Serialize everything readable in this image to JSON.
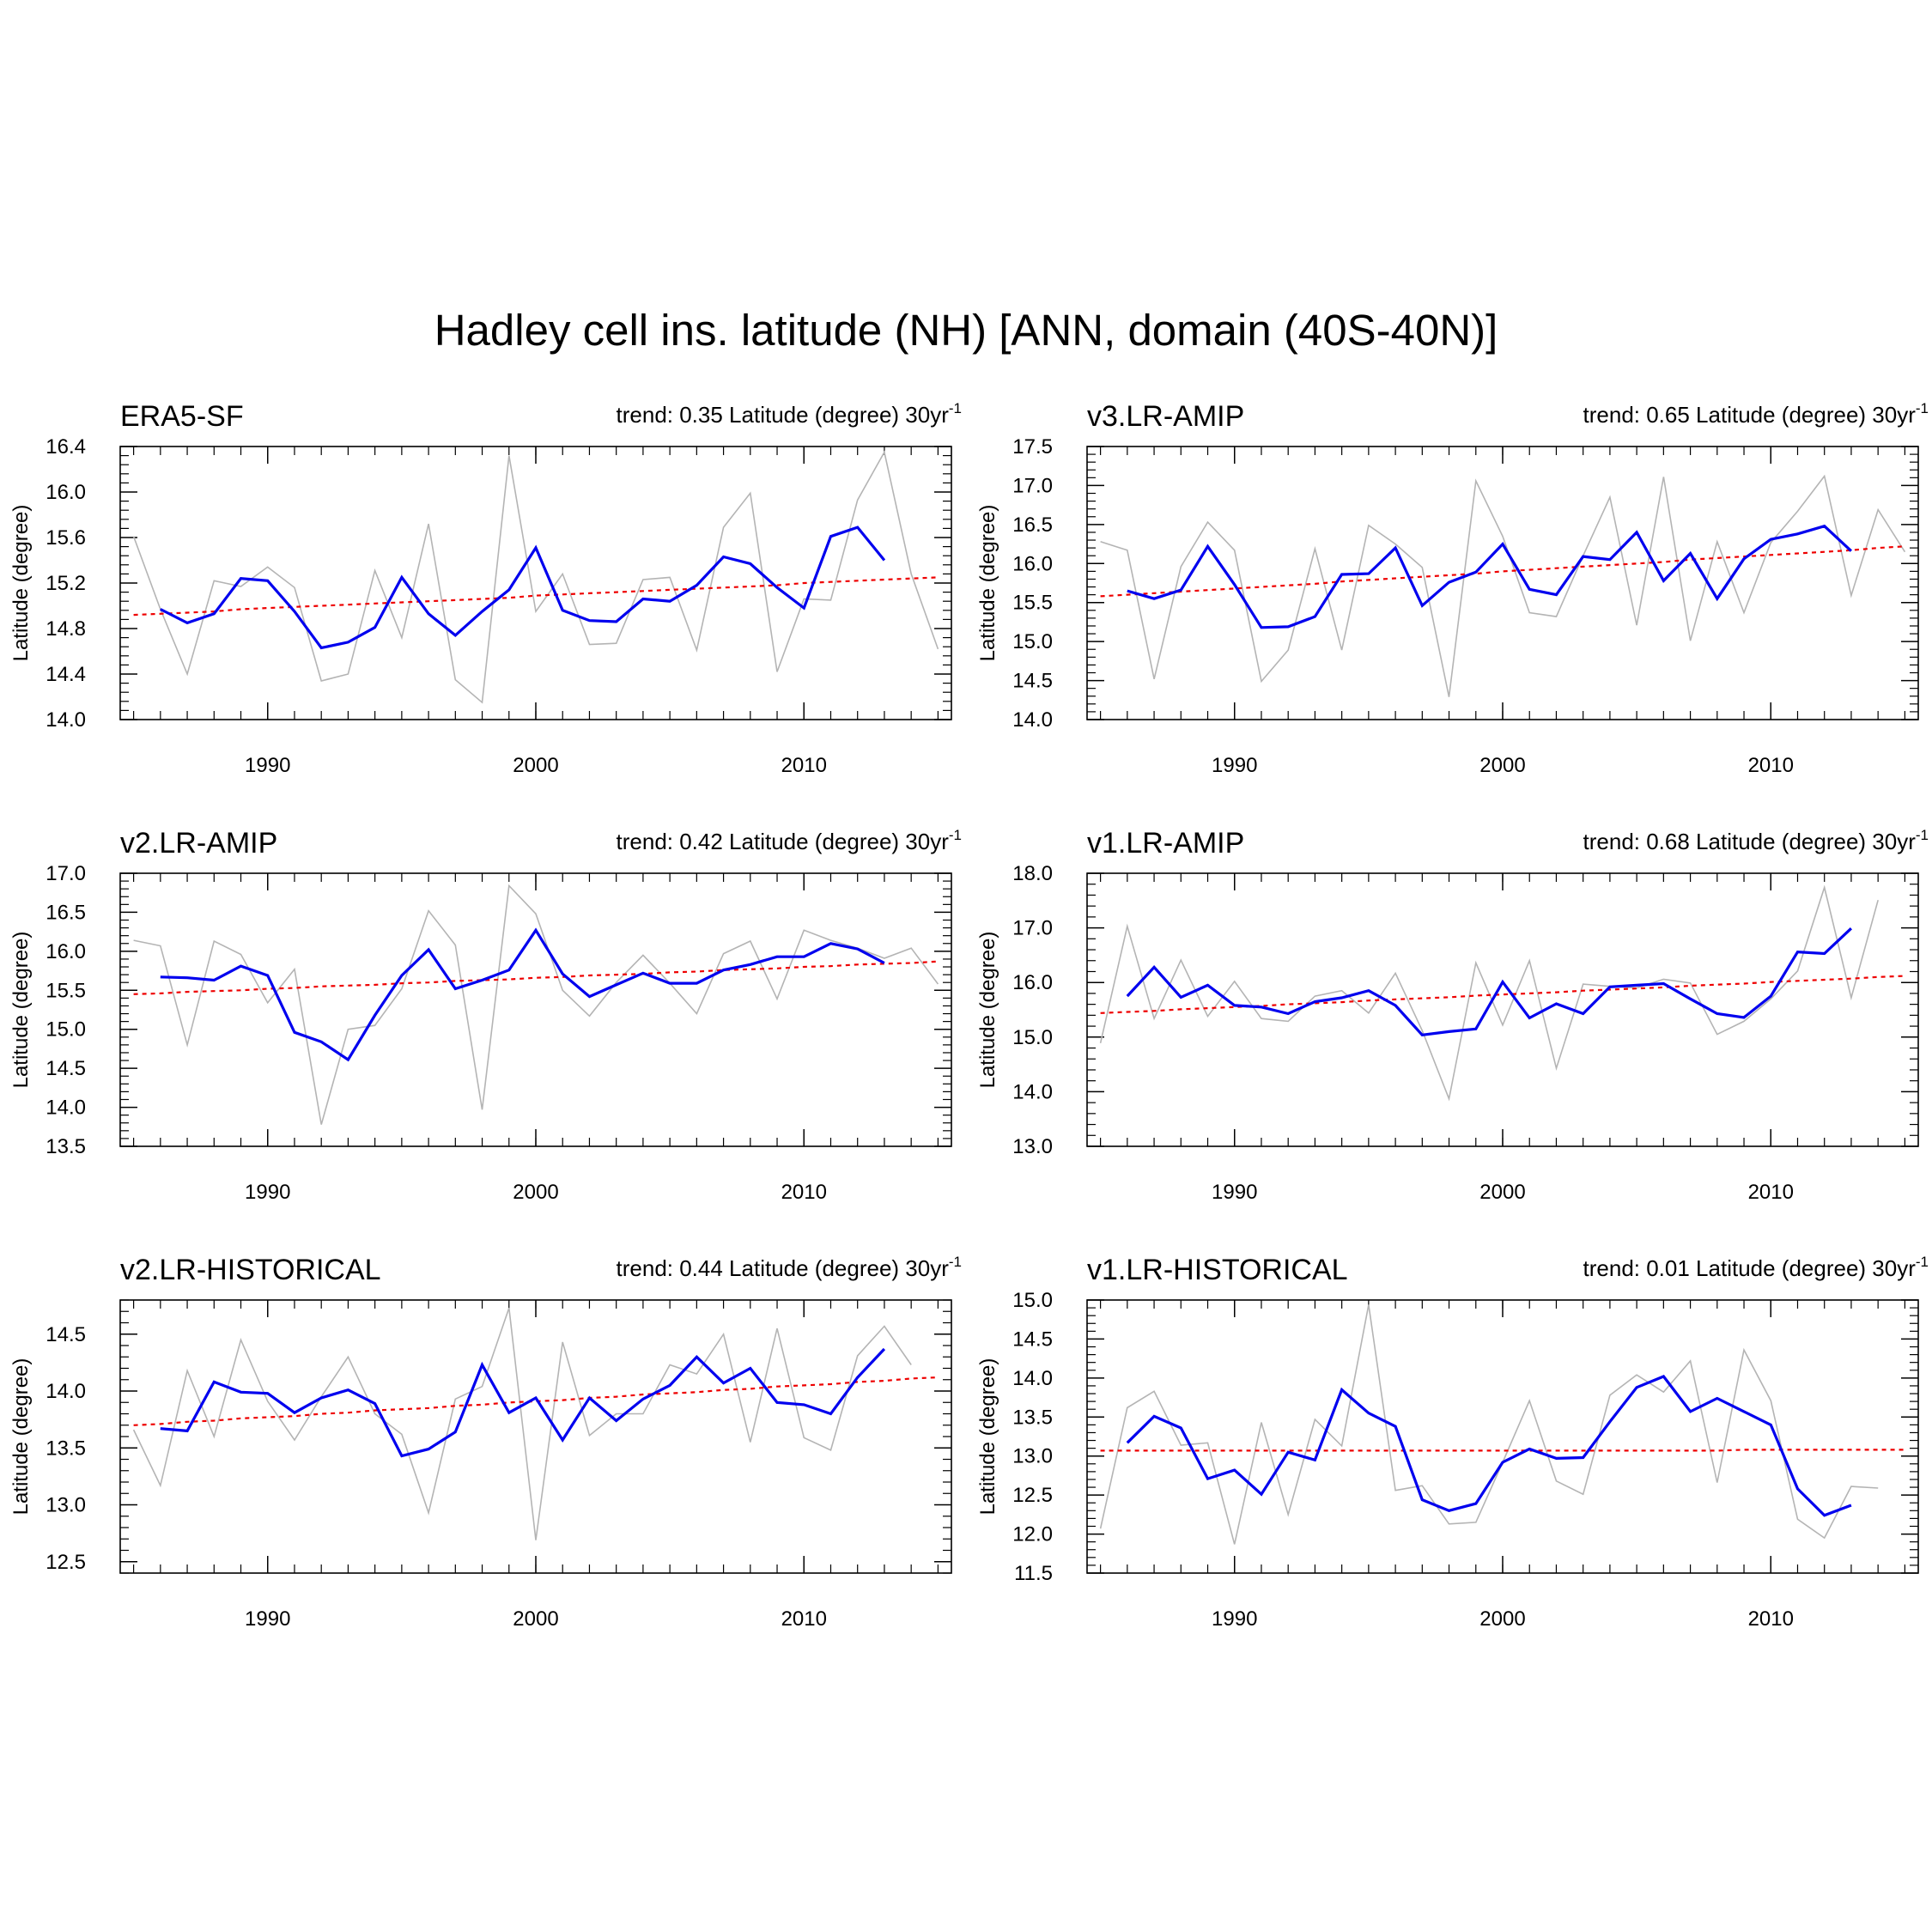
{
  "title": "Hadley cell ins. latitude (NH) [ANN, domain (40S-40N)]",
  "colors": {
    "smoothed": "#0000ee",
    "annual": "#b4b4b4",
    "trend": "#ee0000",
    "axis": "#000000"
  },
  "chart_data": [
    {
      "type": "line",
      "name": "ERA5-SF",
      "trend_text": "trend: 0.35 Latitude (degree) 30yr",
      "trend_sup": "-1",
      "ylabel": "Latitude (degree)",
      "xlim": [
        1984.5,
        2015.5
      ],
      "ylim": [
        14.0,
        16.4
      ],
      "yticks": [
        "14.0",
        "14.4",
        "14.8",
        "15.2",
        "15.6",
        "16.0",
        "16.4"
      ],
      "xticks": [
        "1990",
        "2000",
        "2010"
      ],
      "x": [
        1985,
        1986,
        1987,
        1988,
        1989,
        1990,
        1991,
        1992,
        1993,
        1994,
        1995,
        1996,
        1997,
        1998,
        1999,
        2000,
        2001,
        2002,
        2003,
        2004,
        2005,
        2006,
        2007,
        2008,
        2009,
        2010,
        2011,
        2012,
        2013,
        2014,
        2015
      ],
      "series": [
        {
          "name": "annual",
          "values": [
            15.61,
            14.97,
            14.4,
            15.22,
            15.17,
            15.34,
            15.16,
            14.34,
            14.4,
            15.31,
            14.72,
            15.72,
            14.35,
            14.15,
            16.32,
            14.95,
            15.28,
            14.66,
            14.67,
            15.23,
            15.25,
            14.61,
            15.69,
            15.99,
            14.42,
            15.06,
            15.05,
            15.93,
            16.35,
            15.28,
            14.62
          ]
        },
        {
          "name": "smoothed",
          "values": [
            null,
            14.97,
            14.85,
            14.93,
            15.24,
            15.22,
            14.95,
            14.63,
            14.68,
            14.81,
            15.25,
            14.93,
            14.74,
            14.95,
            15.14,
            15.51,
            14.96,
            14.87,
            14.86,
            15.06,
            15.04,
            15.18,
            15.43,
            15.37,
            15.16,
            14.98,
            15.61,
            15.69,
            15.4,
            null,
            null
          ]
        },
        {
          "name": "trend",
          "values": [
            14.92,
            14.93,
            14.94,
            14.95,
            14.97,
            14.98,
            14.99,
            15.0,
            15.01,
            15.02,
            15.03,
            15.04,
            15.05,
            15.06,
            15.07,
            15.09,
            15.1,
            15.11,
            15.12,
            15.13,
            15.14,
            15.15,
            15.16,
            15.17,
            15.18,
            15.2,
            15.21,
            15.22,
            15.23,
            15.24,
            15.25
          ]
        }
      ]
    },
    {
      "type": "line",
      "name": "v3.LR-AMIP",
      "trend_text": "trend: 0.65 Latitude (degree) 30yr",
      "trend_sup": "-1",
      "ylabel": "Latitude (degree)",
      "xlim": [
        1984.5,
        2015.5
      ],
      "ylim": [
        14.0,
        17.5
      ],
      "yticks": [
        "14.0",
        "14.5",
        "15.0",
        "15.5",
        "16.0",
        "16.5",
        "17.0",
        "17.5"
      ],
      "xticks": [
        "1990",
        "2000",
        "2010"
      ],
      "x": [
        1985,
        1986,
        1987,
        1988,
        1989,
        1990,
        1991,
        1992,
        1993,
        1994,
        1995,
        1996,
        1997,
        1998,
        1999,
        2000,
        2001,
        2002,
        2003,
        2004,
        2005,
        2006,
        2007,
        2008,
        2009,
        2010,
        2011,
        2012,
        2013,
        2014,
        2015
      ],
      "series": [
        {
          "name": "annual",
          "values": [
            16.28,
            16.17,
            14.52,
            15.96,
            16.53,
            16.17,
            14.49,
            14.89,
            16.19,
            14.89,
            16.49,
            16.25,
            15.95,
            14.29,
            17.06,
            16.35,
            15.37,
            15.32,
            16.1,
            16.85,
            15.21,
            17.11,
            15.01,
            16.28,
            15.37,
            16.27,
            16.67,
            17.12,
            15.59,
            16.69,
            16.15
          ]
        },
        {
          "name": "smoothed",
          "values": [
            null,
            15.65,
            15.55,
            15.66,
            16.22,
            15.73,
            15.18,
            15.19,
            15.32,
            15.86,
            15.87,
            16.2,
            15.46,
            15.76,
            15.89,
            16.25,
            15.67,
            15.6,
            16.09,
            16.05,
            16.4,
            15.78,
            16.13,
            15.55,
            16.06,
            16.31,
            16.38,
            16.48,
            16.16,
            null,
            null
          ]
        },
        {
          "name": "trend",
          "values": [
            15.58,
            15.6,
            15.62,
            15.64,
            15.66,
            15.68,
            15.7,
            15.72,
            15.74,
            15.77,
            15.79,
            15.81,
            15.83,
            15.85,
            15.87,
            15.9,
            15.92,
            15.94,
            15.96,
            15.98,
            16.0,
            16.02,
            16.05,
            16.07,
            16.09,
            16.11,
            16.13,
            16.15,
            16.17,
            16.2,
            16.22
          ]
        }
      ]
    },
    {
      "type": "line",
      "name": "v2.LR-AMIP",
      "trend_text": "trend: 0.42 Latitude (degree) 30yr",
      "trend_sup": "-1",
      "ylabel": "Latitude (degree)",
      "xlim": [
        1984.5,
        2015.5
      ],
      "ylim": [
        13.5,
        17.0
      ],
      "yticks": [
        "13.5",
        "14.0",
        "14.5",
        "15.0",
        "15.5",
        "16.0",
        "16.5",
        "17.0"
      ],
      "xticks": [
        "1990",
        "2000",
        "2010"
      ],
      "x": [
        1985,
        1986,
        1987,
        1988,
        1989,
        1990,
        1991,
        1992,
        1993,
        1994,
        1995,
        1996,
        1997,
        1998,
        1999,
        2000,
        2001,
        2002,
        2003,
        2004,
        2005,
        2006,
        2007,
        2008,
        2009,
        2010,
        2011,
        2012,
        2013,
        2014,
        2015
      ],
      "series": [
        {
          "name": "annual",
          "values": [
            16.14,
            16.07,
            14.8,
            16.13,
            15.96,
            15.34,
            15.77,
            13.78,
            15.0,
            15.05,
            15.52,
            16.52,
            16.08,
            13.97,
            16.84,
            16.48,
            15.5,
            15.17,
            15.6,
            15.95,
            15.59,
            15.2,
            15.97,
            16.13,
            15.39,
            16.27,
            16.14,
            16.04,
            15.91,
            16.04,
            15.58
          ]
        },
        {
          "name": "smoothed",
          "values": [
            null,
            15.67,
            15.66,
            15.63,
            15.81,
            15.69,
            14.96,
            14.84,
            14.61,
            15.18,
            15.69,
            16.02,
            15.52,
            15.63,
            15.76,
            16.27,
            15.71,
            15.42,
            15.57,
            15.72,
            15.59,
            15.59,
            15.76,
            15.83,
            15.93,
            15.93,
            16.1,
            16.03,
            15.85,
            null,
            null
          ]
        },
        {
          "name": "trend",
          "values": [
            15.45,
            15.46,
            15.48,
            15.49,
            15.5,
            15.52,
            15.53,
            15.55,
            15.56,
            15.57,
            15.59,
            15.6,
            15.62,
            15.63,
            15.64,
            15.66,
            15.67,
            15.69,
            15.7,
            15.71,
            15.73,
            15.74,
            15.76,
            15.77,
            15.78,
            15.8,
            15.81,
            15.83,
            15.84,
            15.85,
            15.87
          ]
        }
      ]
    },
    {
      "type": "line",
      "name": "v1.LR-AMIP",
      "trend_text": "trend: 0.68 Latitude (degree) 30yr",
      "trend_sup": "-1",
      "ylabel": "Latitude (degree)",
      "xlim": [
        1984.5,
        2015.5
      ],
      "ylim": [
        13.0,
        18.0
      ],
      "yticks": [
        "13.0",
        "14.0",
        "15.0",
        "16.0",
        "17.0",
        "18.0"
      ],
      "xticks": [
        "1990",
        "2000",
        "2010"
      ],
      "x": [
        1985,
        1986,
        1987,
        1988,
        1989,
        1990,
        1991,
        1992,
        1993,
        1994,
        1995,
        1996,
        1997,
        1998,
        1999,
        2000,
        2001,
        2002,
        2003,
        2004,
        2005,
        2006,
        2007,
        2008,
        2009,
        2010,
        2011,
        2012,
        2013,
        2014,
        2015
      ],
      "series": [
        {
          "name": "annual",
          "values": [
            14.89,
            17.03,
            15.34,
            16.41,
            15.38,
            16.02,
            15.34,
            15.29,
            15.75,
            15.85,
            15.44,
            16.17,
            15.12,
            13.87,
            16.36,
            15.22,
            16.4,
            14.43,
            15.97,
            15.93,
            15.9,
            16.06,
            15.99,
            15.05,
            15.29,
            15.7,
            16.21,
            17.74,
            15.72,
            17.51,
            null
          ]
        },
        {
          "name": "smoothed",
          "values": [
            null,
            15.75,
            16.28,
            15.73,
            15.95,
            15.58,
            15.55,
            15.43,
            15.65,
            15.72,
            15.85,
            15.58,
            15.04,
            15.1,
            15.15,
            16.01,
            15.35,
            15.61,
            15.43,
            15.92,
            15.95,
            15.98,
            15.7,
            15.43,
            15.36,
            15.75,
            16.56,
            16.53,
            16.99,
            null,
            null
          ]
        },
        {
          "name": "trend",
          "values": [
            15.44,
            15.46,
            15.48,
            15.51,
            15.53,
            15.55,
            15.57,
            15.6,
            15.62,
            15.64,
            15.67,
            15.69,
            15.71,
            15.73,
            15.76,
            15.78,
            15.8,
            15.82,
            15.85,
            15.87,
            15.89,
            15.91,
            15.94,
            15.96,
            15.98,
            16.01,
            16.03,
            16.05,
            16.07,
            16.1,
            16.12
          ]
        }
      ]
    },
    {
      "type": "line",
      "name": "v2.LR-HISTORICAL",
      "trend_text": "trend: 0.44 Latitude (degree) 30yr",
      "trend_sup": "-1",
      "ylabel": "Latitude (degree)",
      "xlim": [
        1984.5,
        2015.5
      ],
      "ylim": [
        12.4,
        14.8
      ],
      "yticks": [
        "12.5",
        "13.0",
        "13.5",
        "14.0",
        "14.5"
      ],
      "xticks": [
        "1990",
        "2000",
        "2010"
      ],
      "x": [
        1985,
        1986,
        1987,
        1988,
        1989,
        1990,
        1991,
        1992,
        1993,
        1994,
        1995,
        1996,
        1997,
        1998,
        1999,
        2000,
        2001,
        2002,
        2003,
        2004,
        2005,
        2006,
        2007,
        2008,
        2009,
        2010,
        2011,
        2012,
        2013,
        2014,
        2015
      ],
      "series": [
        {
          "name": "annual",
          "values": [
            13.66,
            13.17,
            14.18,
            13.6,
            14.45,
            13.91,
            13.57,
            13.95,
            14.3,
            13.8,
            13.62,
            12.93,
            13.93,
            14.04,
            14.73,
            12.69,
            14.43,
            13.61,
            13.8,
            13.8,
            14.23,
            14.15,
            14.5,
            13.55,
            14.55,
            13.59,
            13.48,
            14.31,
            14.57,
            14.23,
            null
          ]
        },
        {
          "name": "smoothed",
          "values": [
            null,
            13.67,
            13.65,
            14.08,
            13.99,
            13.98,
            13.81,
            13.94,
            14.01,
            13.89,
            13.43,
            13.49,
            13.64,
            14.23,
            13.81,
            13.94,
            13.57,
            13.94,
            13.74,
            13.93,
            14.05,
            14.3,
            14.07,
            14.2,
            13.9,
            13.88,
            13.8,
            14.12,
            14.37,
            null,
            null
          ]
        },
        {
          "name": "trend",
          "values": [
            13.7,
            13.71,
            13.73,
            13.74,
            13.76,
            13.77,
            13.78,
            13.8,
            13.81,
            13.83,
            13.84,
            13.85,
            13.87,
            13.88,
            13.9,
            13.91,
            13.92,
            13.94,
            13.95,
            13.97,
            13.98,
            13.99,
            14.01,
            14.02,
            14.04,
            14.05,
            14.06,
            14.08,
            14.09,
            14.11,
            14.12
          ]
        }
      ]
    },
    {
      "type": "line",
      "name": "v1.LR-HISTORICAL",
      "trend_text": "trend: 0.01 Latitude (degree) 30yr",
      "trend_sup": "-1",
      "ylabel": "Latitude (degree)",
      "xlim": [
        1984.5,
        2015.5
      ],
      "ylim": [
        11.5,
        15.0
      ],
      "yticks": [
        "11.5",
        "12.0",
        "12.5",
        "13.0",
        "13.5",
        "14.0",
        "14.5",
        "15.0"
      ],
      "xticks": [
        "1990",
        "2000",
        "2010"
      ],
      "x": [
        1985,
        1986,
        1987,
        1988,
        1989,
        1990,
        1991,
        1992,
        1993,
        1994,
        1995,
        1996,
        1997,
        1998,
        1999,
        2000,
        2001,
        2002,
        2003,
        2004,
        2005,
        2006,
        2007,
        2008,
        2009,
        2010,
        2011,
        2012,
        2013,
        2014,
        2015
      ],
      "series": [
        {
          "name": "annual",
          "values": [
            12.07,
            13.62,
            13.83,
            13.14,
            13.17,
            11.87,
            13.43,
            12.25,
            13.47,
            13.13,
            14.94,
            12.56,
            12.62,
            12.13,
            12.15,
            12.92,
            13.71,
            12.68,
            12.51,
            13.78,
            14.04,
            13.82,
            14.22,
            12.66,
            14.36,
            13.71,
            12.19,
            11.95,
            12.61,
            12.59,
            null
          ]
        },
        {
          "name": "smoothed",
          "values": [
            null,
            13.17,
            13.51,
            13.36,
            12.71,
            12.82,
            12.51,
            13.05,
            12.95,
            13.85,
            13.55,
            13.38,
            12.44,
            12.3,
            12.39,
            12.92,
            13.09,
            12.97,
            12.98,
            13.44,
            13.88,
            14.02,
            13.57,
            13.74,
            13.57,
            13.4,
            12.58,
            12.24,
            12.37,
            null,
            null
          ]
        },
        {
          "name": "trend",
          "values": [
            13.07,
            13.07,
            13.07,
            13.07,
            13.07,
            13.07,
            13.07,
            13.07,
            13.07,
            13.07,
            13.07,
            13.07,
            13.07,
            13.07,
            13.07,
            13.07,
            13.07,
            13.07,
            13.07,
            13.07,
            13.07,
            13.07,
            13.07,
            13.07,
            13.08,
            13.08,
            13.08,
            13.08,
            13.08,
            13.08,
            13.08
          ]
        }
      ]
    }
  ]
}
